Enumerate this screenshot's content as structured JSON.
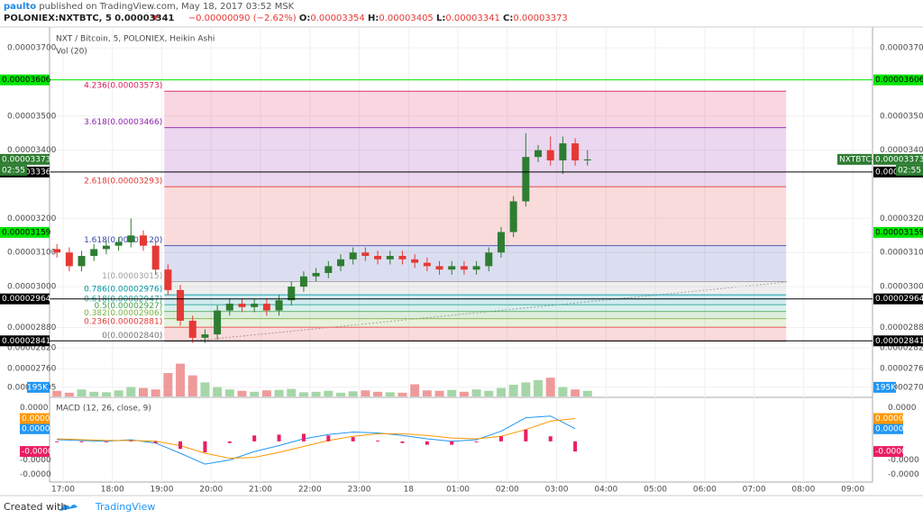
{
  "header": {
    "user": "paulto",
    "published": "published on TradingView.com, May 18, 2017 03:52 MSK",
    "symbol": "POLONIEX:NXTBTC, 5",
    "last": "0.00003341",
    "change": "−0.00000090 (−2.62%)",
    "o_label": "O:",
    "o": "0.00003354",
    "h_label": "H:",
    "h": "0.00003405",
    "l_label": "L:",
    "l": "0.00003341",
    "c_label": "C:",
    "c": "0.00003373"
  },
  "footer": {
    "created": "Created with",
    "brand": "TradingView"
  },
  "chart_data": [
    {
      "type": "candlestick",
      "title": "NXT / Bitcoin, 5, POLONIEX, Heikin Ashi",
      "subtitle": "Vol (20)",
      "up_color": "#2e7d32",
      "down_color": "#e53935",
      "xlim": [
        16.726,
        33.4
      ],
      "ylim": [
        2.678e-05,
        3.761e-05
      ],
      "yticks": [
        {
          "value": 3.7e-05,
          "label": "0.00003700"
        },
        {
          "value": 3.5e-05,
          "label": "0.00003500"
        },
        {
          "value": 3.4e-05,
          "label": "0.00003400"
        },
        {
          "value": 3.2e-05,
          "label": "0.00003200"
        },
        {
          "value": 3.1e-05,
          "label": "0.00003100"
        },
        {
          "value": 3e-05,
          "label": "0.00003000"
        },
        {
          "value": 2.88e-05,
          "label": "0.00002880"
        },
        {
          "value": 2.82e-05,
          "label": "0.00002820"
        },
        {
          "value": 2.76e-05,
          "label": "0.00002760"
        },
        {
          "value": 2.705e-05,
          "label": "0.00002705"
        }
      ],
      "x": [
        16.875,
        17.125,
        17.375,
        17.625,
        17.875,
        18.125,
        18.375,
        18.625,
        18.875,
        19.125,
        19.375,
        19.625,
        19.875,
        20.125,
        20.375,
        20.625,
        20.875,
        21.125,
        21.375,
        21.625,
        21.875,
        22.125,
        22.375,
        22.625,
        22.875,
        23.125,
        23.375,
        23.625,
        23.875,
        24.125,
        24.375,
        24.625,
        24.875,
        25.125,
        25.375,
        25.625,
        25.875,
        26.125,
        26.375,
        26.625,
        26.875,
        27.125,
        27.375,
        27.625
      ],
      "open": [
        3.11e-05,
        3.1e-05,
        3.06e-05,
        3.09e-05,
        3.11e-05,
        3.12e-05,
        3.13e-05,
        3.15e-05,
        3.12e-05,
        3.05e-05,
        2.99e-05,
        2.9e-05,
        2.85e-05,
        2.86e-05,
        2.93e-05,
        2.95e-05,
        2.94e-05,
        2.95e-05,
        2.93e-05,
        2.96e-05,
        3e-05,
        3.03e-05,
        3.04e-05,
        3.06e-05,
        3.08e-05,
        3.1e-05,
        3.09e-05,
        3.08e-05,
        3.09e-05,
        3.08e-05,
        3.07e-05,
        3.06e-05,
        3.05e-05,
        3.06e-05,
        3.05e-05,
        3.06e-05,
        3.1e-05,
        3.16e-05,
        3.25e-05,
        3.38e-05,
        3.4e-05,
        3.37e-05,
        3.42e-05,
        3.37e-05
      ],
      "high": [
        3.125e-05,
        3.115e-05,
        3.105e-05,
        3.125e-05,
        3.135e-05,
        3.145e-05,
        3.2e-05,
        3.165e-05,
        3.135e-05,
        3.065e-05,
        3.005e-05,
        2.915e-05,
        2.875e-05,
        2.945e-05,
        2.965e-05,
        2.965e-05,
        2.965e-05,
        2.965e-05,
        2.975e-05,
        3.015e-05,
        3.045e-05,
        3.055e-05,
        3.075e-05,
        3.095e-05,
        3.115e-05,
        3.115e-05,
        3.105e-05,
        3.105e-05,
        3.105e-05,
        3.095e-05,
        3.085e-05,
        3.075e-05,
        3.075e-05,
        3.075e-05,
        3.075e-05,
        3.115e-05,
        3.175e-05,
        3.265e-05,
        3.45e-05,
        3.415e-05,
        3.44e-05,
        3.44e-05,
        3.435e-05,
        3.4e-05
      ],
      "low": [
        3.085e-05,
        3.045e-05,
        3.045e-05,
        3.075e-05,
        3.095e-05,
        3.105e-05,
        3.115e-05,
        3.105e-05,
        3.035e-05,
        2.975e-05,
        2.885e-05,
        2.835e-05,
        2.835e-05,
        2.845e-05,
        2.915e-05,
        2.925e-05,
        2.925e-05,
        2.915e-05,
        2.915e-05,
        2.945e-05,
        2.985e-05,
        3.015e-05,
        3.025e-05,
        3.045e-05,
        3.065e-05,
        3.075e-05,
        3.065e-05,
        3.065e-05,
        3.065e-05,
        3.055e-05,
        3.045e-05,
        3.035e-05,
        3.035e-05,
        3.035e-05,
        3.035e-05,
        3.045e-05,
        3.085e-05,
        3.145e-05,
        3.235e-05,
        3.365e-05,
        3.355e-05,
        3.33e-05,
        3.355e-05,
        3.355e-05
      ],
      "close": [
        3.1e-05,
        3.06e-05,
        3.09e-05,
        3.11e-05,
        3.12e-05,
        3.13e-05,
        3.15e-05,
        3.12e-05,
        3.05e-05,
        2.99e-05,
        2.9e-05,
        2.85e-05,
        2.86e-05,
        2.93e-05,
        2.95e-05,
        2.94e-05,
        2.95e-05,
        2.93e-05,
        2.96e-05,
        3e-05,
        3.03e-05,
        3.04e-05,
        3.06e-05,
        3.08e-05,
        3.1e-05,
        3.09e-05,
        3.08e-05,
        3.09e-05,
        3.08e-05,
        3.07e-05,
        3.06e-05,
        3.05e-05,
        3.06e-05,
        3.05e-05,
        3.06e-05,
        3.1e-05,
        3.16e-05,
        3.25e-05,
        3.38e-05,
        3.4e-05,
        3.37e-05,
        3.42e-05,
        3.37e-05,
        3.373e-05
      ],
      "volume": {
        "values": [
          120,
          80,
          150,
          100,
          90,
          130,
          200,
          180,
          150,
          500,
          700,
          450,
          300,
          200,
          150,
          120,
          100,
          130,
          140,
          160,
          90,
          100,
          120,
          80,
          110,
          130,
          100,
          90,
          80,
          260,
          130,
          120,
          140,
          100,
          150,
          120,
          180,
          250,
          300,
          350,
          400,
          200,
          150,
          120
        ],
        "ylim": [
          0,
          1000
        ],
        "label": {
          "value": 195,
          "label": "195K"
        },
        "label_color": "#2196f3",
        "up_color": "#a5d6a7",
        "down_color": "#ef9a9a"
      },
      "fib": {
        "x": [
          19.05,
          31.65
        ],
        "levels": [
          {
            "value": 3.573e-05,
            "label": "4.236(0.00003573)",
            "color": "#d81b60"
          },
          {
            "value": 3.466e-05,
            "label": "3.618(0.00003466)",
            "color": "#8e24aa"
          },
          {
            "value": 3.293e-05,
            "label": "2.618(0.00003293)",
            "color": "#e53935"
          },
          {
            "value": 3.12e-05,
            "label": "1.618(0.00003120)",
            "color": "#3949ab"
          },
          {
            "value": 3.015e-05,
            "label": "1(0.00003015)",
            "color": "#9e9e9e"
          },
          {
            "value": 2.976e-05,
            "label": "0.786(0.00002976)",
            "color": "#0097a7"
          },
          {
            "value": 2.947e-05,
            "label": "0.618(0.00002947)",
            "color": "#26a69a"
          },
          {
            "value": 2.927e-05,
            "label": "0.5(0.00002927)",
            "color": "#43a047"
          },
          {
            "value": 2.906e-05,
            "label": "0.382(0.00002906)",
            "color": "#7cb342"
          },
          {
            "value": 2.881e-05,
            "label": "0.236(0.00002881)",
            "color": "#e53935"
          },
          {
            "value": 2.84e-05,
            "label": "0(0.00002840)",
            "color": "#757575"
          }
        ]
      },
      "price_lines": [
        {
          "value": 3.606e-05,
          "label": "0.00003606",
          "color": "#00e600",
          "text_color": "#000000",
          "line": true
        },
        {
          "value": 3.336e-05,
          "label": "0.00003336",
          "color": "#000000",
          "text_color": "#ffffff",
          "line": true
        },
        {
          "value": 3.159e-05,
          "label": "0.00003159",
          "color": "#00e600",
          "text_color": "#000000",
          "line": false
        },
        {
          "value": 2.964e-05,
          "label": "0.00002964",
          "color": "#000000",
          "text_color": "#ffffff",
          "line": true
        },
        {
          "value": 2.841e-05,
          "label": "0.00002841",
          "color": "#000000",
          "text_color": "#ffffff",
          "line": true
        }
      ],
      "current": {
        "value": 3.373e-05,
        "label": "0.00003373",
        "time": "02:55",
        "symbol": "NXTBTC",
        "color": "#2e7d32"
      }
    },
    {
      "type": "macd",
      "title": "MACD (12, 26, close, 9)",
      "xlim": [
        16.726,
        33.4
      ],
      "ylim": [
        -4.5e-06,
        5e-06
      ],
      "xticks": [
        {
          "value": 17,
          "label": "17:00"
        },
        {
          "value": 18,
          "label": "18:00"
        },
        {
          "value": 19,
          "label": "19:00"
        },
        {
          "value": 20,
          "label": "20:00"
        },
        {
          "value": 21,
          "label": "21:00"
        },
        {
          "value": 22,
          "label": "22:00"
        },
        {
          "value": 23,
          "label": "23:00"
        },
        {
          "value": 24,
          "label": "18"
        },
        {
          "value": 25,
          "label": "01:00"
        },
        {
          "value": 26,
          "label": "02:00"
        },
        {
          "value": 27,
          "label": "03:00"
        },
        {
          "value": 28,
          "label": "04:00"
        },
        {
          "value": 29,
          "label": "05:00"
        },
        {
          "value": 30,
          "label": "06:00"
        },
        {
          "value": 31,
          "label": "07:00"
        },
        {
          "value": 32,
          "label": "08:00"
        },
        {
          "value": 33,
          "label": "09:00"
        }
      ],
      "yticks": [
        {
          "value": 4e-06,
          "label": "0.0000"
        },
        {
          "value": -2.2e-06,
          "label": "-0.0000"
        },
        {
          "value": -3.9e-06,
          "label": "-0.0000"
        }
      ],
      "x": [
        16.875,
        17.375,
        17.875,
        18.375,
        18.875,
        19.375,
        19.875,
        20.375,
        20.875,
        21.375,
        21.875,
        22.375,
        22.875,
        23.375,
        23.875,
        24.375,
        24.875,
        25.375,
        25.875,
        26.375,
        26.875,
        27.375
      ],
      "series": [
        {
          "type": "line",
          "color": "#2196f3",
          "last_label": "0.0000",
          "values": [
            2e-07,
            1e-07,
            0,
            2e-07,
            -2e-07,
            -1.4e-06,
            -2.7e-06,
            -2.2e-06,
            -1.2e-06,
            -5e-07,
            3e-07,
            8e-07,
            1.1e-06,
            1e-06,
            7e-07,
            3e-07,
            0,
            2e-07,
            1.2e-06,
            2.8e-06,
            3e-06,
            1.5e-06
          ]
        },
        {
          "type": "line",
          "color": "#ff9800",
          "last_label": "0.0000",
          "values": [
            3e-07,
            2e-07,
            1e-07,
            1e-07,
            0,
            -5e-07,
            -1.4e-06,
            -2e-06,
            -1.9e-06,
            -1.3e-06,
            -6e-07,
            1e-07,
            6e-07,
            9e-07,
            9e-07,
            7e-07,
            4e-07,
            3e-07,
            6e-07,
            1.4e-06,
            2.4e-06,
            2.7e-06
          ]
        },
        {
          "type": "histogram",
          "color": "#e91e63",
          "last_label": "-0.0000",
          "values": [
            -1e-07,
            -1e-07,
            -1e-07,
            1e-07,
            -2e-07,
            -9e-07,
            -1.3e-06,
            -2e-07,
            7e-07,
            8e-07,
            9e-07,
            7e-07,
            5e-07,
            1e-07,
            -2e-07,
            -4e-07,
            -4e-07,
            -1e-07,
            6e-07,
            1.4e-06,
            6e-07,
            -1.2e-06
          ]
        }
      ]
    }
  ]
}
